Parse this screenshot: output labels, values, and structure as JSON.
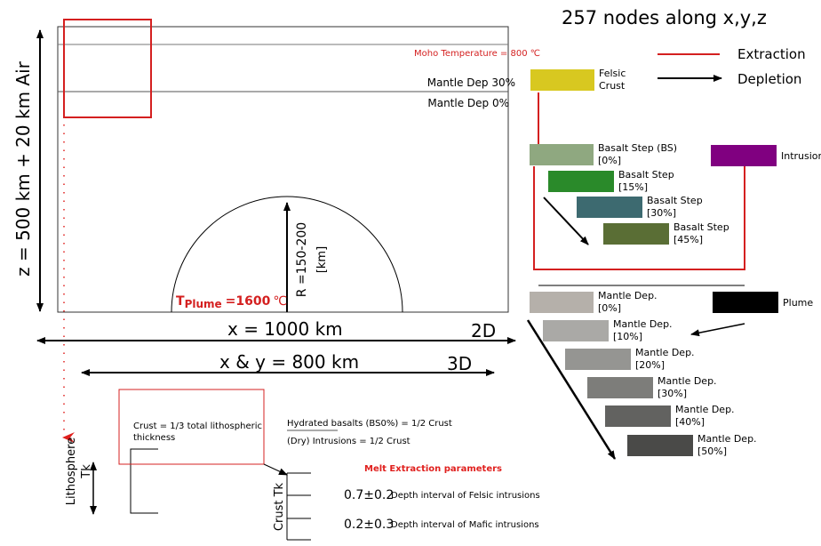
{
  "header": {
    "title": "257 nodes along x,y,z"
  },
  "legend": {
    "extraction": "Extraction",
    "depletion": "Depletion"
  },
  "model": {
    "z_label": "z  = 500 km + 20 km Air",
    "moho": "Moho Temperature = 800 ℃",
    "dep30": "Mantle Dep 30%",
    "dep0": "Mantle Dep 0%",
    "radius": [
      "R =150-200",
      "[km]"
    ],
    "plume_t": {
      "t": "T",
      "sub": "Plume",
      "value": "=1600",
      "unit": "℃"
    },
    "x2d": "x  = 1000 km",
    "label2d": "2D",
    "x3d": "x & y = 800 km",
    "label3d": "3D"
  },
  "lithosphere": {
    "label": [
      "Lithosphere",
      "Tk"
    ],
    "crust": [
      "Crust = 1/3 total lithospheric",
      "thickness"
    ],
    "hydrated": "Hydrated basalts (BS0%) = 1/2 Crust",
    "dry": "(Dry) Intrusions  = 1/2 Crust",
    "melt_title": "Melt Extraction parameters",
    "crust_tk": "Crust Tk",
    "felsic": [
      "0.7±0.2",
      "Depth interval of Felsic intrusions"
    ],
    "mafic": [
      "0.2±0.3",
      "Depth interval of Mafic intrusions"
    ]
  },
  "phases": [
    {
      "lines": [
        "Felsic",
        "Crust"
      ]
    },
    {
      "lines": [
        "Basalt Step (BS)",
        "[0%]"
      ]
    },
    {
      "lines": [
        "Basalt Step",
        "[15%]"
      ]
    },
    {
      "lines": [
        "Basalt Step",
        "[30%]"
      ]
    },
    {
      "lines": [
        "Basalt Step",
        "[45%]"
      ]
    },
    {
      "lines": [
        "Intrusion"
      ]
    },
    {
      "lines": [
        "Mantle Dep.",
        "[0%]"
      ]
    },
    {
      "lines": [
        "Mantle Dep.",
        "[10%]"
      ]
    },
    {
      "lines": [
        "Mantle Dep.",
        "[20%]"
      ]
    },
    {
      "lines": [
        "Mantle Dep.",
        "[30%]"
      ]
    },
    {
      "lines": [
        "Mantle Dep.",
        "[40%]"
      ]
    },
    {
      "lines": [
        "Mantle Dep.",
        "[50%]"
      ]
    },
    {
      "lines": [
        "Plume"
      ]
    }
  ]
}
